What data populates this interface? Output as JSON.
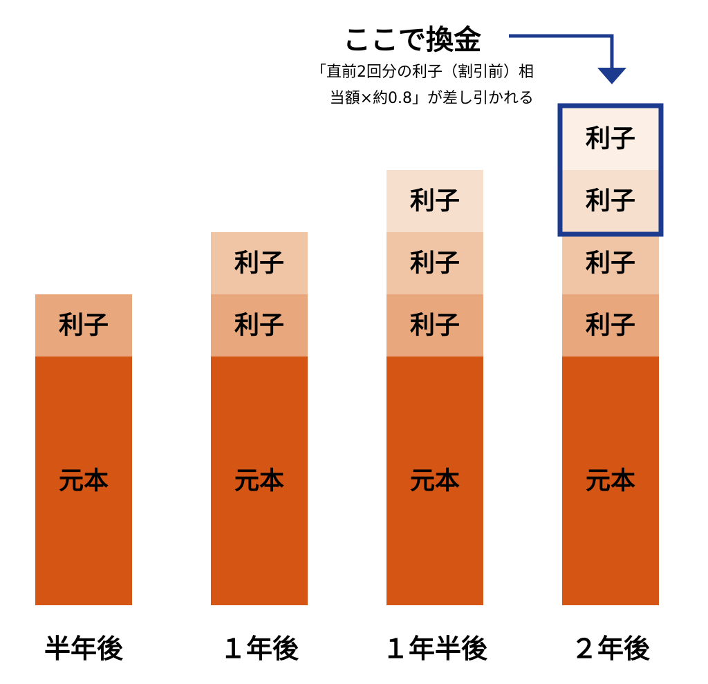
{
  "chart_data": {
    "type": "bar",
    "stacked": true,
    "categories": [
      "半年後",
      "１年後",
      "１年半後",
      "２年後"
    ],
    "series": [
      {
        "name": "元本",
        "values": [
          1,
          1,
          1,
          1
        ]
      },
      {
        "name": "利子",
        "values": [
          0.25,
          0.25,
          0.25,
          0.25
        ]
      },
      {
        "name": "利子",
        "values": [
          0,
          0.25,
          0.25,
          0.25
        ]
      },
      {
        "name": "利子",
        "values": [
          0,
          0,
          0.25,
          0.25
        ]
      },
      {
        "name": "利子",
        "values": [
          0,
          0,
          0,
          0.25
        ]
      }
    ],
    "segment_labels": {
      "principal": "元本",
      "interest": "利子"
    },
    "colors": {
      "principal": "#d55515",
      "interest": [
        "#e9a77d",
        "#f0c5a5",
        "#f7dfcd",
        "#fcefe6"
      ],
      "highlight": "#1c3b8f"
    },
    "annotation": {
      "title": "ここで換金",
      "note_line1": "「直前2回分の利子（割引前）相",
      "note_line2": "当額×約0.8」が差し引かれる",
      "highlight_category": "２年後",
      "highlight_segments": 2
    },
    "title": "",
    "xlabel": "",
    "ylabel": "",
    "ylim": [
      0,
      2
    ],
    "grid": false,
    "legend": "none"
  }
}
